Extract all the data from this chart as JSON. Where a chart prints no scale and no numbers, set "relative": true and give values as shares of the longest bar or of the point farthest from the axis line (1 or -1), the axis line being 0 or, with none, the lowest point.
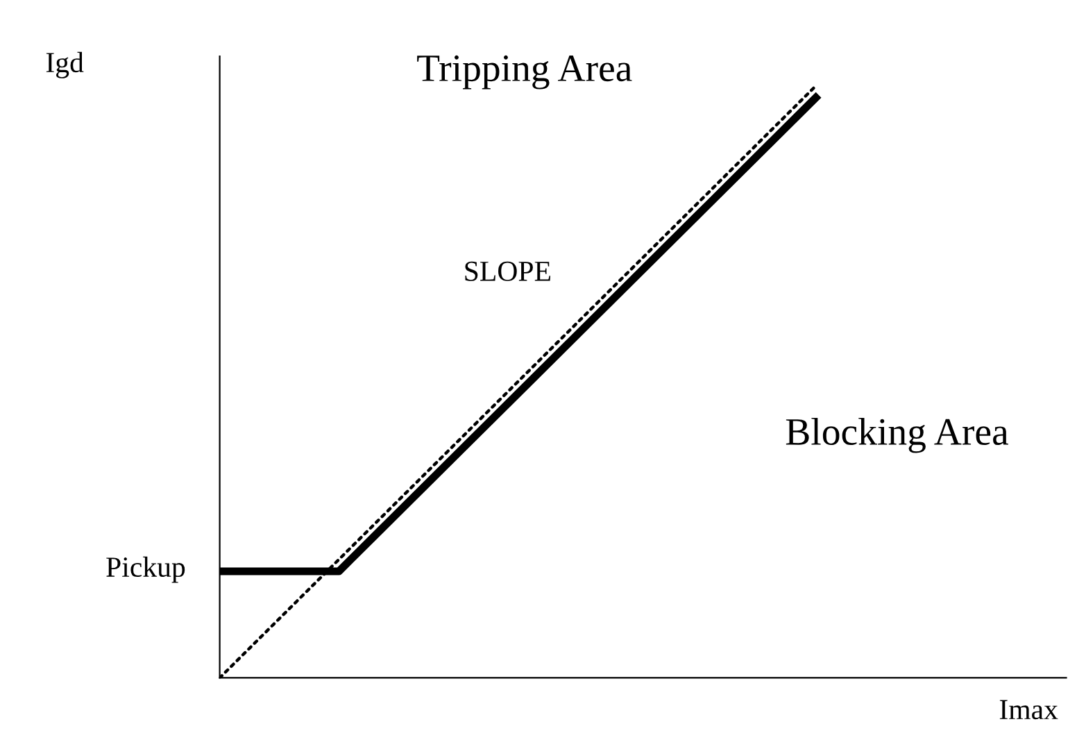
{
  "chart_data": {
    "type": "line",
    "relative": true,
    "xlabel": "Imax",
    "ylabel": "Igd",
    "categories": [
      null,
      null,
      null,
      null,
      null,
      null
    ],
    "annotations": [
      "Tripping Area",
      "SLOPE",
      "Blocking Area",
      "Pickup"
    ],
    "series": [
      {
        "color": "#000000",
        "values": [
          0.18,
          0.18,
          0.38,
          0.58,
          0.78,
          0.98
        ],
        "line_style": "solid"
      },
      {
        "color": "#000000",
        "values": [
          0,
          0.2,
          0.4,
          0.6,
          0.8,
          1.0
        ],
        "line_style": "dotted"
      }
    ]
  }
}
